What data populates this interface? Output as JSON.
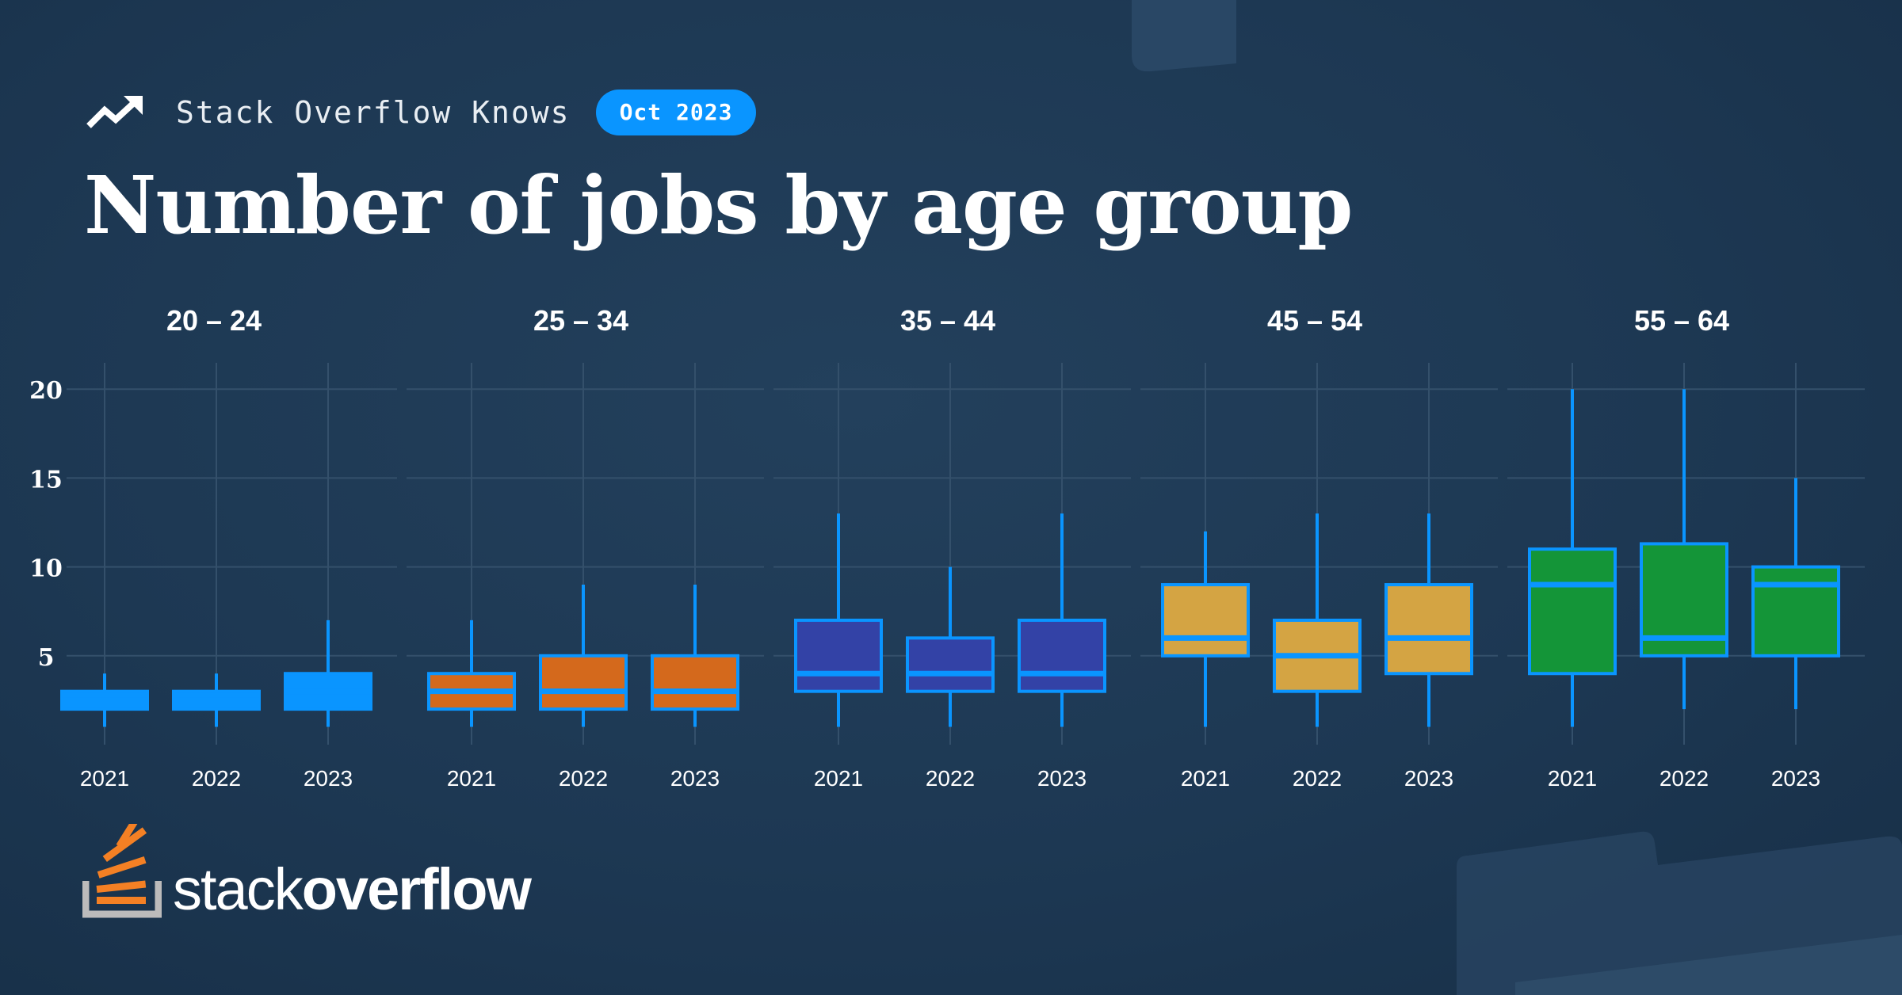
{
  "header": {
    "icon": "trending-up-icon",
    "brand": "Stack Overflow Knows",
    "badge": "Oct 2023"
  },
  "title": "Number of jobs by age group",
  "colors": {
    "background": "#1d3853",
    "accent": "#0a95ff",
    "grid": "#34506b",
    "groups": [
      "#0a95ff",
      "#d4691c",
      "#3342a6",
      "#d4a443",
      "#149538"
    ]
  },
  "chart_data": {
    "type": "box",
    "title": "Number of jobs by age group",
    "y_ticks": [
      5,
      10,
      15,
      20
    ],
    "ylim": [
      0,
      20.5
    ],
    "grid": true,
    "panels": [
      {
        "label": "20 – 24",
        "categories": [
          "2021",
          "2022",
          "2023"
        ],
        "boxes": [
          {
            "whisker_low": 1,
            "q1": 2,
            "median": 2.5,
            "q3": 3,
            "whisker_high": 4
          },
          {
            "whisker_low": 1,
            "q1": 2,
            "median": 2.5,
            "q3": 3,
            "whisker_high": 4
          },
          {
            "whisker_low": 1,
            "q1": 2,
            "median": 3,
            "q3": 4,
            "whisker_high": 7
          }
        ]
      },
      {
        "label": "25 – 34",
        "categories": [
          "2021",
          "2022",
          "2023"
        ],
        "boxes": [
          {
            "whisker_low": 1,
            "q1": 2,
            "median": 3,
            "q3": 4,
            "whisker_high": 7
          },
          {
            "whisker_low": 1,
            "q1": 2,
            "median": 3,
            "q3": 5,
            "whisker_high": 9
          },
          {
            "whisker_low": 1,
            "q1": 2,
            "median": 3,
            "q3": 5,
            "whisker_high": 9
          }
        ]
      },
      {
        "label": "35 – 44",
        "categories": [
          "2021",
          "2022",
          "2023"
        ],
        "boxes": [
          {
            "whisker_low": 1,
            "q1": 3,
            "median": 4,
            "q3": 7,
            "whisker_high": 13
          },
          {
            "whisker_low": 1,
            "q1": 3,
            "median": 4,
            "q3": 6,
            "whisker_high": 10
          },
          {
            "whisker_low": 1,
            "q1": 3,
            "median": 4,
            "q3": 7,
            "whisker_high": 13
          }
        ]
      },
      {
        "label": "45 – 54",
        "categories": [
          "2021",
          "2022",
          "2023"
        ],
        "boxes": [
          {
            "whisker_low": 1,
            "q1": 5,
            "median": 6,
            "q3": 9,
            "whisker_high": 12
          },
          {
            "whisker_low": 1,
            "q1": 3,
            "median": 5,
            "q3": 7,
            "whisker_high": 13
          },
          {
            "whisker_low": 1,
            "q1": 4,
            "median": 6,
            "q3": 9,
            "whisker_high": 13
          }
        ]
      },
      {
        "label": "55 – 64",
        "categories": [
          "2021",
          "2022",
          "2023"
        ],
        "boxes": [
          {
            "whisker_low": 1,
            "q1": 4,
            "median": 9,
            "q3": 11,
            "whisker_high": 20
          },
          {
            "whisker_low": 2,
            "q1": 5,
            "median": 6,
            "q3": 11.3,
            "whisker_high": 20
          },
          {
            "whisker_low": 2,
            "q1": 5,
            "median": 9,
            "q3": 10,
            "whisker_high": 15
          }
        ]
      }
    ]
  },
  "logo": {
    "icon": "stackoverflow-logo-icon",
    "text_light": "stack",
    "text_bold": "overflow"
  }
}
